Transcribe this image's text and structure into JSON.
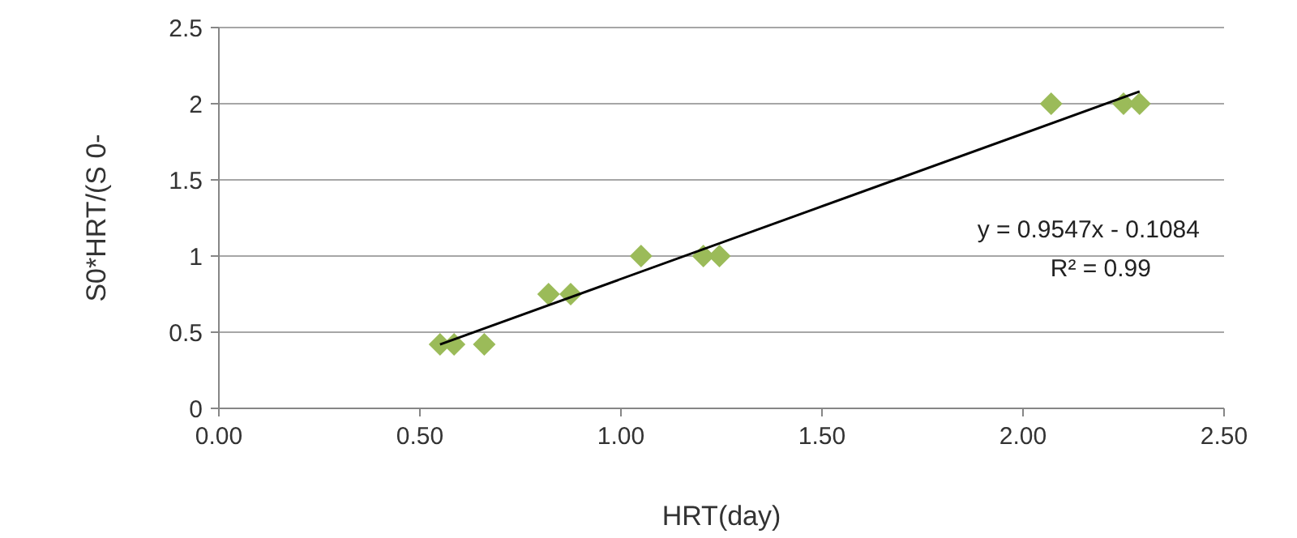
{
  "chart_data": {
    "type": "scatter",
    "xlabel": "HRT(day)",
    "ylabel": "S0*HRT/(S 0-",
    "xlim": [
      0,
      2.5
    ],
    "xticks": [
      {
        "value": 0,
        "label": "0.00"
      },
      {
        "value": 0.5,
        "label": "0.50"
      },
      {
        "value": 1,
        "label": "1.00"
      },
      {
        "value": 1.5,
        "label": "1.50"
      },
      {
        "value": 2,
        "label": "2.00"
      },
      {
        "value": 2.5,
        "label": "2.50"
      }
    ],
    "ylim": [
      0,
      2.5
    ],
    "yticks": [
      0,
      0.5,
      1,
      1.5,
      2,
      2.5
    ],
    "grid": "y",
    "marker": "diamond",
    "series": [
      {
        "type": "scatter",
        "color": "#9bbb59",
        "x": [
          0.55,
          0.585,
          0.66,
          0.82,
          0.875,
          1.05,
          1.205,
          1.245,
          2.07,
          2.25,
          2.29
        ],
        "values": [
          0.42,
          0.42,
          0.42,
          0.75,
          0.75,
          1.0,
          1.0,
          1.0,
          2.0,
          2.0,
          2.0
        ]
      },
      {
        "type": "line",
        "color": "#000000",
        "marker": "none",
        "x": [
          0.55,
          2.29
        ],
        "values": [
          0.42,
          2.08
        ]
      }
    ],
    "annotations": [
      "y = 0.9547x - 0.1084",
      "R² = 0.99"
    ]
  }
}
